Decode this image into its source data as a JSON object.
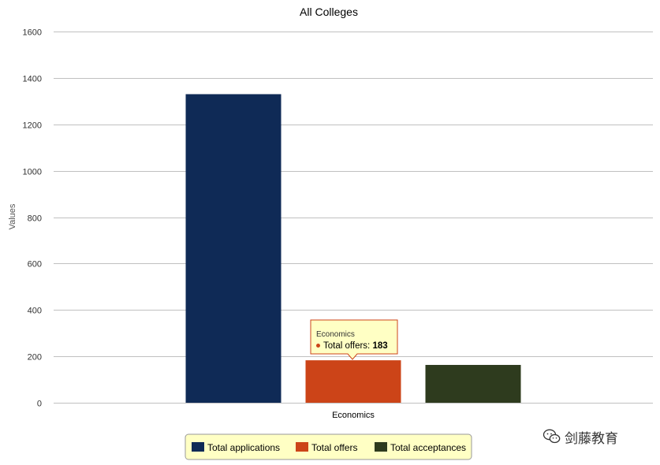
{
  "chart_data": {
    "type": "bar",
    "title": "All Colleges",
    "xlabel": "",
    "ylabel": "Values",
    "categories": [
      "Economics"
    ],
    "series": [
      {
        "name": "Total applications",
        "values": [
          1330
        ],
        "color": "#0f2a56"
      },
      {
        "name": "Total offers",
        "values": [
          183
        ],
        "color": "#cc4418"
      },
      {
        "name": "Total acceptances",
        "values": [
          163
        ],
        "color": "#2e3b1e"
      }
    ],
    "ylim": [
      0,
      1600
    ],
    "yticks": [
      0,
      200,
      400,
      600,
      800,
      1000,
      1200,
      1400,
      1600
    ],
    "grid": true,
    "legend_position": "bottom-center",
    "tooltip": {
      "category": "Economics",
      "series_label": "Total offers:",
      "value": "183",
      "color": "#cc4418"
    }
  },
  "watermark": {
    "text": "剑藤教育",
    "icon": "wechat-icon"
  }
}
